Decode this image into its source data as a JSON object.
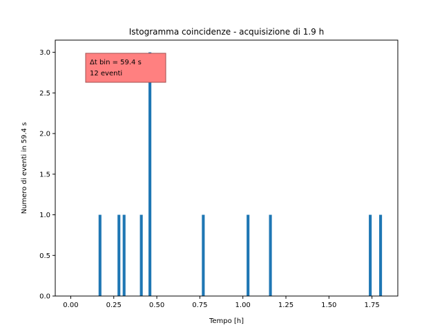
{
  "chart_data": {
    "type": "bar",
    "title": "Istogramma coincidenze - acquisizione di 1.9 h",
    "xlabel": "Tempo [h]",
    "ylabel": "Numero di eventi in 59.4 s",
    "xlim": [
      -0.09,
      1.9
    ],
    "ylim": [
      0,
      3.15
    ],
    "xticks": [
      0.0,
      0.25,
      0.5,
      0.75,
      1.0,
      1.25,
      1.5,
      1.75
    ],
    "xtick_labels": [
      "0.00",
      "0.25",
      "0.50",
      "0.75",
      "1.00",
      "1.25",
      "1.50",
      "1.75"
    ],
    "yticks": [
      0.0,
      0.5,
      1.0,
      1.5,
      2.0,
      2.5,
      3.0
    ],
    "ytick_labels": [
      "0.0",
      "0.5",
      "1.0",
      "1.5",
      "2.0",
      "2.5",
      "3.0"
    ],
    "bin_width_h": 0.0165,
    "bar_color": "#1f77b4",
    "bars": [
      {
        "x": 0.17,
        "value": 1
      },
      {
        "x": 0.28,
        "value": 1
      },
      {
        "x": 0.31,
        "value": 1
      },
      {
        "x": 0.41,
        "value": 1
      },
      {
        "x": 0.46,
        "value": 3
      },
      {
        "x": 0.77,
        "value": 1
      },
      {
        "x": 1.03,
        "value": 1
      },
      {
        "x": 1.16,
        "value": 1
      },
      {
        "x": 1.74,
        "value": 1
      },
      {
        "x": 1.8,
        "value": 1
      }
    ],
    "annotation": {
      "line1": "Δt bin = 59.4 s",
      "line2": "12 eventi",
      "background": "#ff8080",
      "border": "#a05050",
      "placement": "top-left"
    },
    "grid": false,
    "legend": "none"
  }
}
